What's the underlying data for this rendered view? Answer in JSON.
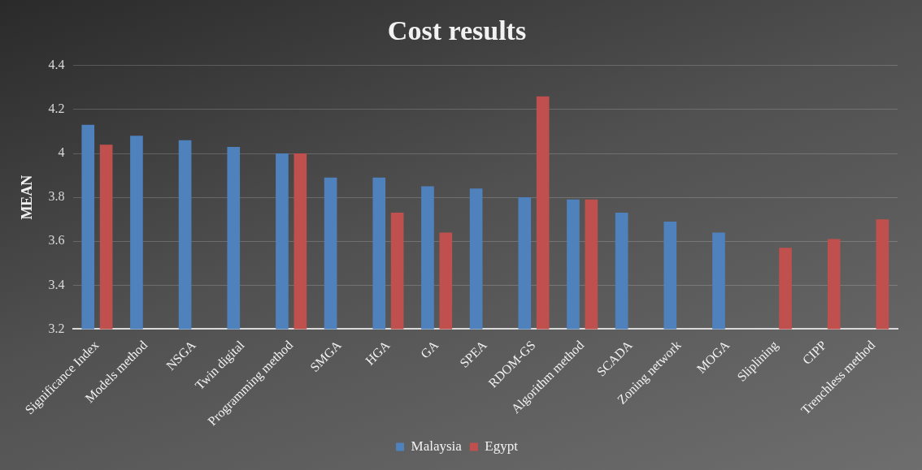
{
  "chart_data": {
    "type": "bar",
    "title": "Cost results",
    "ylabel": "MEAN",
    "categories": [
      "Significance Index",
      "Models method",
      "NSGA",
      "Twin digital",
      "Programming method",
      "SMGA",
      "HGA",
      "GA",
      "SPEA",
      "RDOM-GS",
      "Algorithm method",
      "SCADA",
      "Zoning network",
      "MOGA",
      "Sliplining",
      "CIPP",
      "Trenchless method"
    ],
    "series": [
      {
        "name": "Malaysia",
        "color": "#4f81bd",
        "values": [
          4.13,
          4.08,
          4.06,
          4.03,
          4.0,
          3.89,
          3.89,
          3.85,
          3.84,
          3.8,
          3.79,
          3.73,
          3.69,
          3.64,
          null,
          null,
          null
        ]
      },
      {
        "name": "Egypt",
        "color": "#c0504d",
        "values": [
          4.04,
          null,
          null,
          null,
          4.0,
          null,
          3.73,
          3.64,
          null,
          4.26,
          3.79,
          null,
          null,
          null,
          3.57,
          3.61,
          3.7
        ]
      }
    ],
    "ylim": [
      3.2,
      4.4
    ],
    "yticks": [
      3.2,
      3.4,
      3.6,
      3.8,
      4,
      4.2,
      4.4
    ],
    "grid": "y",
    "legend": "bottom"
  }
}
